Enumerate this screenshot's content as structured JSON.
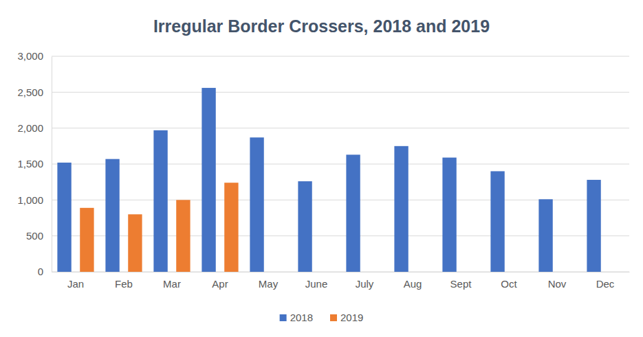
{
  "chart_data": {
    "type": "bar",
    "title": "Irregular Border Crossers, 2018 and 2019",
    "categories": [
      "Jan",
      "Feb",
      "Mar",
      "Apr",
      "May",
      "June",
      "July",
      "Aug",
      "Sept",
      "Oct",
      "Nov",
      "Dec"
    ],
    "series": [
      {
        "name": "2018",
        "color": "#4472c4",
        "values": [
          1520,
          1570,
          1970,
          2560,
          1870,
          1260,
          1630,
          1750,
          1590,
          1400,
          1010,
          1280
        ]
      },
      {
        "name": "2019",
        "color": "#ed7d31",
        "values": [
          890,
          800,
          1000,
          1240,
          null,
          null,
          null,
          null,
          null,
          null,
          null,
          null
        ]
      }
    ],
    "ylim": [
      0,
      3000
    ],
    "yticks": [
      0,
      500,
      {
        "value": 1000,
        "label": "1,000"
      },
      {
        "value": 1500,
        "label": "1,500"
      },
      {
        "value": 2000,
        "label": "2,000"
      },
      {
        "value": 2500,
        "label": "2,500"
      },
      {
        "value": 3000,
        "label": "3,000"
      }
    ],
    "grid": true,
    "legend": "bottom"
  }
}
